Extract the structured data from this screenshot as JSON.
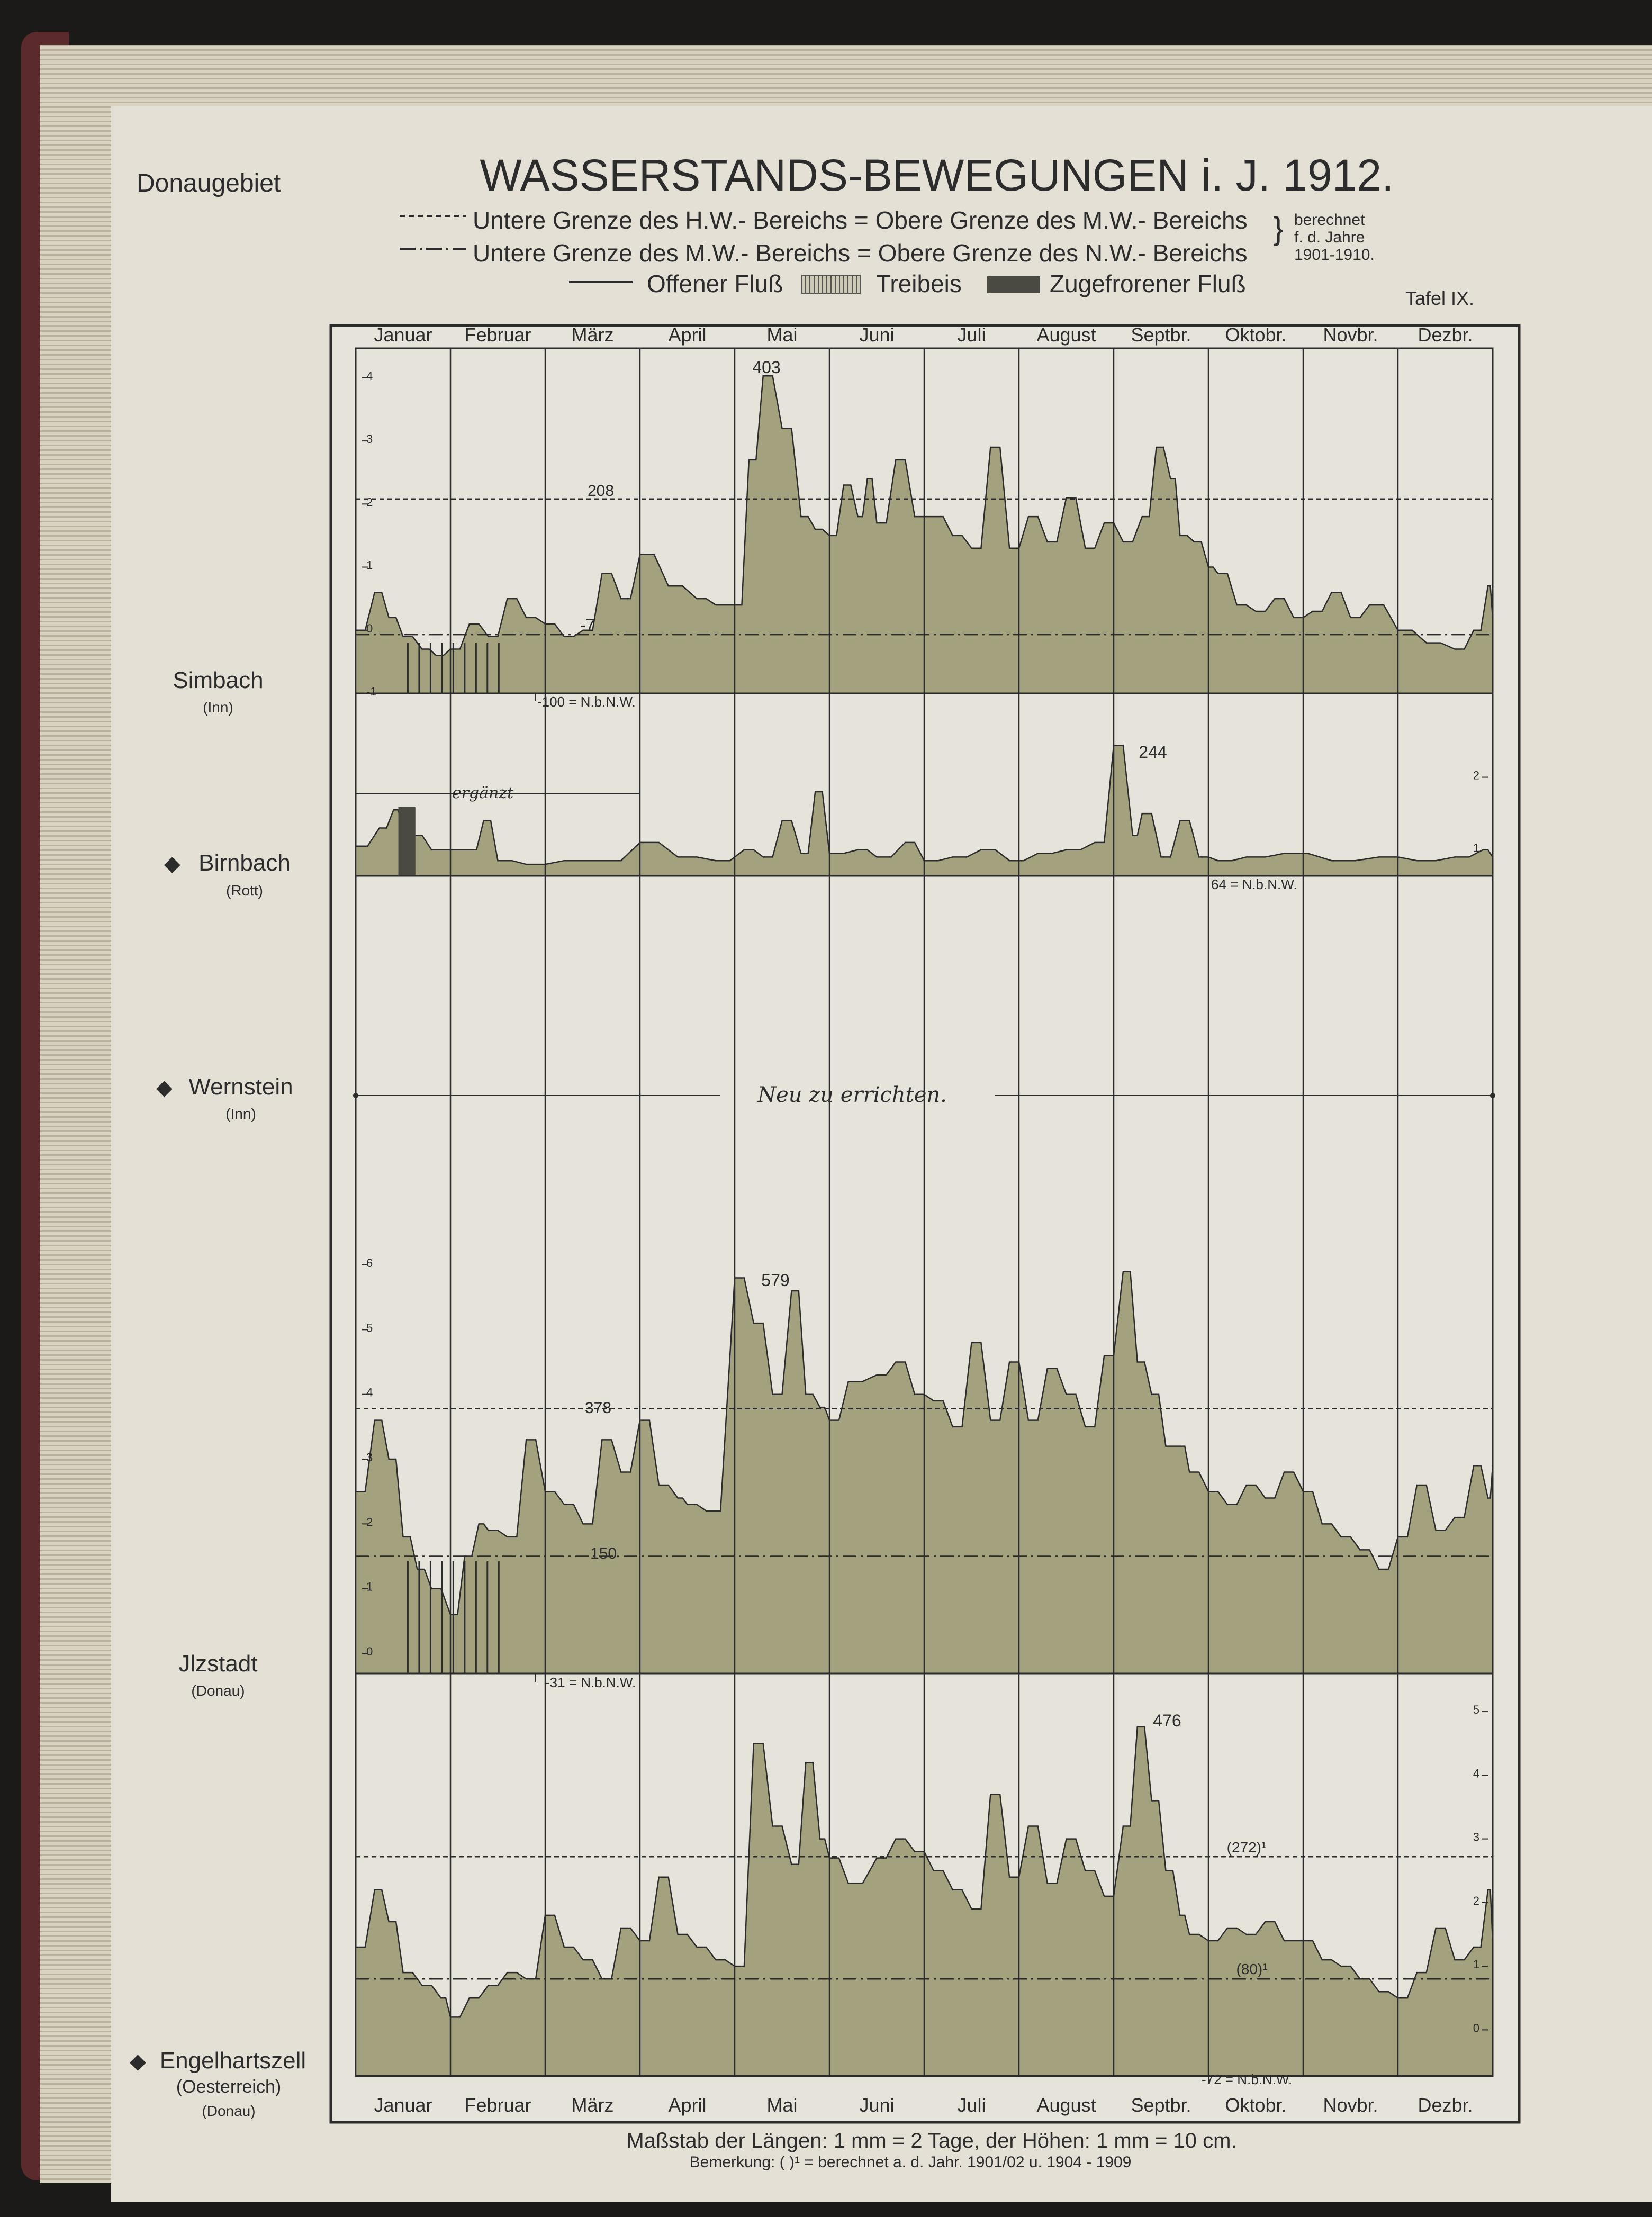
{
  "header": {
    "region": "Donaugebiet",
    "title": "WASSERSTANDS-BEWEGUNGEN i. J. 1912.",
    "legend_line1": "Untere Grenze des H.W.- Bereichs = Obere Grenze des M.W.- Bereichs",
    "legend_line2": "Untere Grenze des M.W.- Bereichs = Obere Grenze des N.W.- Bereichs",
    "legend_note_1": "berechnet",
    "legend_note_2": "f. d. Jahre",
    "legend_note_3": "1901-1910.",
    "legend_open": "Offener Fluß",
    "legend_drift": "Treibeis",
    "legend_frozen": "Zugefrorener Fluß",
    "plate": "Tafel IX."
  },
  "footer": {
    "scale": "Maßstab der Längen: 1 mm = 2 Tage, der Höhen: 1 mm = 10 cm.",
    "note": "Bemerkung: ( )¹ = berechnet a. d. Jahr. 1901/02 u. 1904 - 1909"
  },
  "months": [
    "Januar",
    "Februar",
    "März",
    "April",
    "Mai",
    "Juni",
    "Juli",
    "August",
    "Septbr.",
    "Oktobr.",
    "Novbr.",
    "Dezbr."
  ],
  "stations": {
    "simbach": {
      "name": "Simbach",
      "river": "(Inn)"
    },
    "birnbach": {
      "name": "Birnbach",
      "river": "(Rott)"
    },
    "wernstein": {
      "name": "Wernstein",
      "river": "(Inn)"
    },
    "ilzstadt": {
      "name": "Jlzstadt",
      "river": "(Donau)"
    },
    "engelhartszell": {
      "name": "Engelhartszell",
      "country": "(Oesterreich)",
      "river": "(Donau)"
    }
  },
  "annotations": {
    "simbach_peak": "403",
    "simbach_hw": "208",
    "simbach_nw": "-7",
    "simbach_base": "-100 = N.b.N.W.",
    "birnbach_peak": "244",
    "birnbach_note": "ergänzt",
    "birnbach_base": "64 = N.b.N.W.",
    "wernstein_note": "Neu zu errichten.",
    "ilzstadt_peak": "579",
    "ilzstadt_hw": "378",
    "ilzstadt_nw": "150",
    "ilzstadt_base": "-31 = N.b.N.W.",
    "engel_peak": "476",
    "engel_hw": "(272)¹",
    "engel_nw": "(80)¹",
    "engel_base": "-72 = N.b.N.W."
  },
  "colors": {
    "fill": "#a3a17e",
    "line": "#2c2c2c",
    "paper": "#e4e0d6"
  },
  "chart_data": [
    {
      "type": "area",
      "station": "Simbach (Inn)",
      "unit": "m",
      "ylim": [
        -1,
        4.2
      ],
      "y_ticks": [
        -1,
        0,
        1,
        2,
        3,
        4
      ],
      "hw_line": 2.08,
      "nw_line": -0.07,
      "peak_label": "403",
      "x_month_position": [
        0.0,
        0.2,
        0.35,
        0.5,
        0.7,
        0.85,
        1.0,
        1.2,
        1.4,
        1.6,
        1.8,
        2.0,
        2.2,
        2.4,
        2.6,
        2.8,
        3.0,
        3.3,
        3.6,
        3.8,
        4.0,
        4.15,
        4.3,
        4.5,
        4.7,
        4.85,
        5.0,
        5.15,
        5.3,
        5.4,
        5.5,
        5.7,
        5.9,
        6.1,
        6.3,
        6.5,
        6.7,
        6.9,
        7.1,
        7.3,
        7.5,
        7.7,
        7.9,
        8.1,
        8.3,
        8.45,
        8.6,
        8.7,
        8.85,
        9.0,
        9.1,
        9.3,
        9.5,
        9.7,
        9.9,
        10.1,
        10.3,
        10.5,
        10.7,
        11.0,
        11.3,
        11.6,
        11.8,
        11.95,
        12.0
      ],
      "values": [
        0.0,
        0.6,
        0.2,
        -0.1,
        -0.3,
        -0.4,
        -0.3,
        0.1,
        -0.1,
        0.5,
        0.2,
        0.1,
        -0.1,
        0.0,
        0.9,
        0.5,
        1.2,
        0.7,
        0.5,
        0.4,
        0.4,
        2.7,
        4.03,
        3.2,
        1.8,
        1.6,
        1.5,
        2.3,
        1.8,
        2.4,
        1.7,
        2.7,
        1.8,
        1.8,
        1.5,
        1.3,
        2.9,
        1.3,
        1.8,
        1.4,
        2.1,
        1.3,
        1.7,
        1.4,
        1.8,
        2.9,
        2.4,
        1.5,
        1.4,
        1.0,
        0.9,
        0.4,
        0.3,
        0.5,
        0.2,
        0.3,
        0.6,
        0.2,
        0.4,
        0.0,
        -0.2,
        -0.3,
        0.0,
        0.7,
        0.2
      ]
    },
    {
      "type": "area",
      "station": "Birnbach (Rott)",
      "unit": "m",
      "ylim": [
        0.64,
        2.5
      ],
      "y_ticks": [
        1,
        2
      ],
      "peak_label": "244",
      "x_month_position": [
        0.0,
        0.25,
        0.4,
        0.5,
        0.6,
        0.8,
        1.0,
        1.2,
        1.35,
        1.5,
        1.8,
        2.2,
        2.6,
        3.0,
        3.4,
        3.8,
        4.1,
        4.3,
        4.5,
        4.7,
        4.85,
        5.0,
        5.3,
        5.5,
        5.8,
        6.0,
        6.3,
        6.6,
        6.9,
        7.2,
        7.5,
        7.8,
        8.0,
        8.2,
        8.3,
        8.5,
        8.7,
        8.9,
        9.1,
        9.4,
        9.8,
        10.3,
        10.8,
        11.2,
        11.6,
        11.9,
        12.0
      ],
      "values": [
        1.05,
        1.3,
        1.55,
        1.2,
        1.2,
        1.0,
        1.0,
        1.0,
        1.4,
        0.85,
        0.8,
        0.85,
        0.85,
        1.1,
        0.9,
        0.85,
        1.0,
        0.9,
        1.4,
        0.95,
        1.8,
        0.95,
        1.0,
        0.9,
        1.1,
        0.85,
        0.9,
        1.0,
        0.85,
        0.95,
        1.0,
        1.1,
        2.44,
        1.2,
        1.5,
        0.9,
        1.4,
        0.9,
        0.85,
        0.9,
        0.95,
        0.85,
        0.9,
        0.85,
        0.9,
        1.0,
        0.9
      ]
    },
    {
      "type": "area",
      "station": "Jlzstadt (Donau)",
      "unit": "m",
      "ylim": [
        -0.31,
        6
      ],
      "y_ticks": [
        0,
        1,
        2,
        3,
        4,
        5,
        6
      ],
      "hw_line": 3.78,
      "nw_line": 1.5,
      "peak_label": "579",
      "x_month_position": [
        0.0,
        0.2,
        0.35,
        0.5,
        0.65,
        0.8,
        1.0,
        1.15,
        1.3,
        1.4,
        1.6,
        1.8,
        2.0,
        2.2,
        2.4,
        2.6,
        2.8,
        3.0,
        3.2,
        3.4,
        3.5,
        3.7,
        4.0,
        4.2,
        4.4,
        4.6,
        4.75,
        4.9,
        5.0,
        5.2,
        5.5,
        5.7,
        5.9,
        6.1,
        6.3,
        6.5,
        6.7,
        6.9,
        7.1,
        7.3,
        7.5,
        7.7,
        7.9,
        8.1,
        8.25,
        8.4,
        8.55,
        8.7,
        8.8,
        9.0,
        9.2,
        9.4,
        9.6,
        9.8,
        10.0,
        10.2,
        10.4,
        10.6,
        10.8,
        11.0,
        11.2,
        11.4,
        11.6,
        11.8,
        11.95,
        12.0
      ],
      "values": [
        2.5,
        3.6,
        3.0,
        1.8,
        1.3,
        1.0,
        0.6,
        1.5,
        2.0,
        1.9,
        1.8,
        3.3,
        2.5,
        2.3,
        2.0,
        3.3,
        2.8,
        3.6,
        2.6,
        2.4,
        2.3,
        2.2,
        5.8,
        5.1,
        4.0,
        5.6,
        4.0,
        3.8,
        3.6,
        4.2,
        4.3,
        4.5,
        4.0,
        3.9,
        3.5,
        4.8,
        3.6,
        4.5,
        3.6,
        4.4,
        4.0,
        3.5,
        4.6,
        5.9,
        4.5,
        4.0,
        3.2,
        3.2,
        2.8,
        2.5,
        2.3,
        2.6,
        2.4,
        2.8,
        2.5,
        2.0,
        1.8,
        1.6,
        1.3,
        1.8,
        2.6,
        1.9,
        2.1,
        2.9,
        2.4,
        2.9
      ]
    },
    {
      "type": "area",
      "station": "Engelhartszell (Oesterreich) (Donau)",
      "unit": "m",
      "ylim": [
        -0.72,
        5.2
      ],
      "y_ticks": [
        0,
        1,
        2,
        3,
        4,
        5
      ],
      "hw_line": 2.72,
      "nw_line": 0.8,
      "peak_label": "476",
      "x_month_position": [
        0.0,
        0.2,
        0.35,
        0.5,
        0.7,
        0.9,
        1.0,
        1.2,
        1.4,
        1.6,
        1.8,
        2.0,
        2.2,
        2.4,
        2.6,
        2.8,
        3.0,
        3.2,
        3.4,
        3.6,
        3.8,
        4.0,
        4.2,
        4.4,
        4.6,
        4.75,
        4.9,
        5.0,
        5.2,
        5.5,
        5.7,
        5.9,
        6.1,
        6.3,
        6.5,
        6.7,
        6.9,
        7.1,
        7.3,
        7.5,
        7.7,
        7.9,
        8.1,
        8.25,
        8.4,
        8.55,
        8.7,
        8.8,
        9.0,
        9.2,
        9.4,
        9.6,
        9.8,
        10.0,
        10.2,
        10.4,
        10.6,
        10.8,
        11.0,
        11.2,
        11.4,
        11.6,
        11.8,
        11.95,
        12.0
      ],
      "values": [
        1.3,
        2.2,
        1.7,
        0.9,
        0.7,
        0.5,
        0.2,
        0.5,
        0.7,
        0.9,
        0.8,
        1.8,
        1.3,
        1.1,
        0.8,
        1.6,
        1.4,
        2.4,
        1.5,
        1.3,
        1.1,
        1.0,
        4.5,
        3.2,
        2.6,
        4.2,
        3.0,
        2.7,
        2.3,
        2.7,
        3.0,
        2.8,
        2.5,
        2.2,
        1.9,
        3.7,
        2.4,
        3.2,
        2.3,
        3.0,
        2.5,
        2.1,
        3.2,
        4.76,
        3.6,
        2.5,
        1.8,
        1.5,
        1.4,
        1.6,
        1.5,
        1.7,
        1.4,
        1.4,
        1.1,
        1.0,
        0.8,
        0.6,
        0.5,
        0.9,
        1.6,
        1.1,
        1.3,
        2.2,
        1.4
      ]
    }
  ]
}
